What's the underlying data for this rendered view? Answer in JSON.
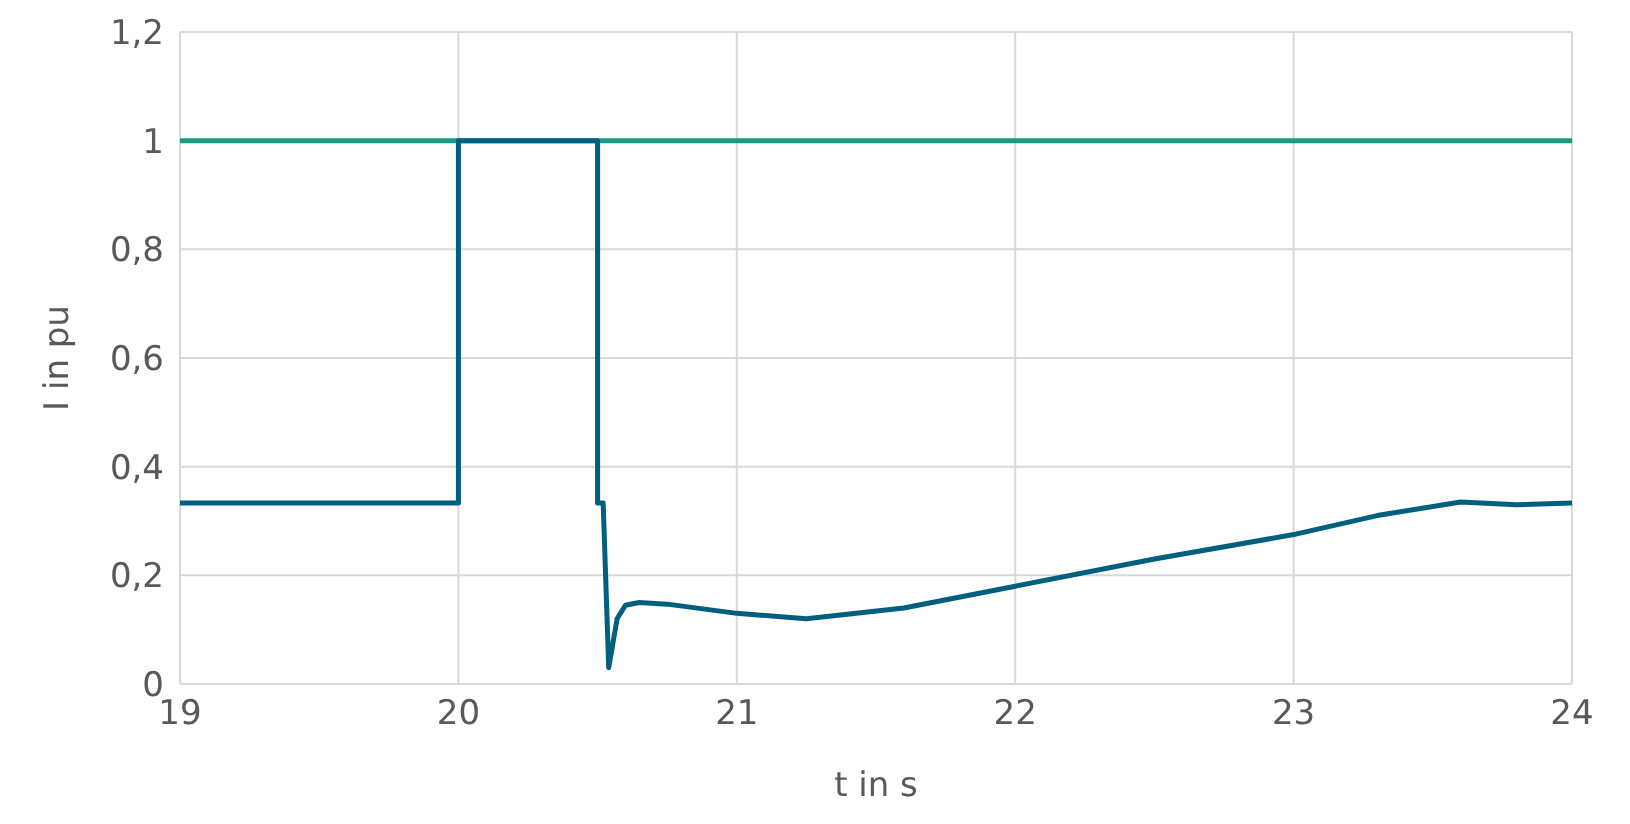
{
  "chart_data": {
    "type": "line",
    "xlabel": "t in s",
    "ylabel": "I in pu",
    "xlim": [
      19,
      24
    ],
    "xticks": [
      19,
      20,
      21,
      22,
      23,
      24
    ],
    "ylim": [
      0,
      1.2
    ],
    "yticks": [
      0,
      {
        "value": 0.2,
        "label": "0,2"
      },
      {
        "value": 0.4,
        "label": "0,4"
      },
      {
        "value": 0.6,
        "label": "0,6"
      },
      {
        "value": 0.8,
        "label": "0,8"
      },
      1,
      {
        "value": 1.2,
        "label": "1,2"
      }
    ],
    "grid": true,
    "marker": "none",
    "line_style": "solid",
    "series": [
      {
        "color": "#1a9a82",
        "x": [
          19,
          24
        ],
        "values": [
          1,
          1
        ]
      },
      {
        "color": "#005f7f",
        "x": [
          19,
          20,
          20,
          20.5,
          20.5,
          20.52,
          20.54,
          20.57,
          20.6,
          20.65,
          20.75,
          21,
          21.25,
          21.6,
          22,
          22.5,
          23,
          23.3,
          23.6,
          23.8,
          24
        ],
        "values": [
          0.333,
          0.333,
          1,
          1,
          0.333,
          0.333,
          0.03,
          0.12,
          0.145,
          0.15,
          0.147,
          0.13,
          0.12,
          0.14,
          0.18,
          0.23,
          0.275,
          0.31,
          0.335,
          0.33,
          0.333
        ]
      }
    ]
  }
}
